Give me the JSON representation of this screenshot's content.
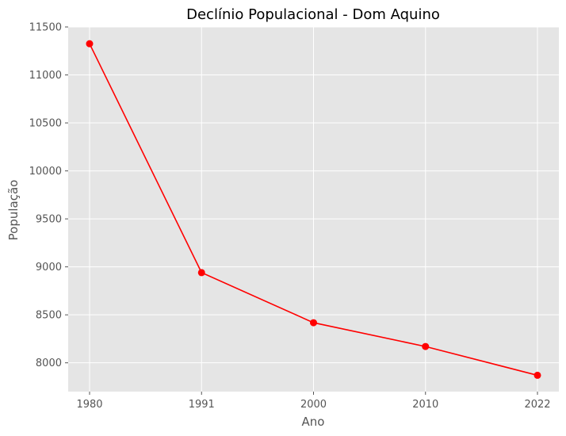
{
  "chart_data": {
    "type": "line",
    "title": "Declínio Populacional - Dom Aquino",
    "xlabel": "Ano",
    "ylabel": "População",
    "categories": [
      "1980",
      "1991",
      "2000",
      "2010",
      "2022"
    ],
    "series": [
      {
        "values": [
          11325,
          8940,
          8418,
          8170,
          7870
        ],
        "color": "#ff0000"
      }
    ],
    "yticks": [
      8000,
      8500,
      9000,
      9500,
      10000,
      10500,
      11000,
      11500
    ],
    "ylim": [
      7700,
      11500
    ],
    "grid": true,
    "background": "#e5e5e5",
    "grid_color": "#ffffff"
  }
}
